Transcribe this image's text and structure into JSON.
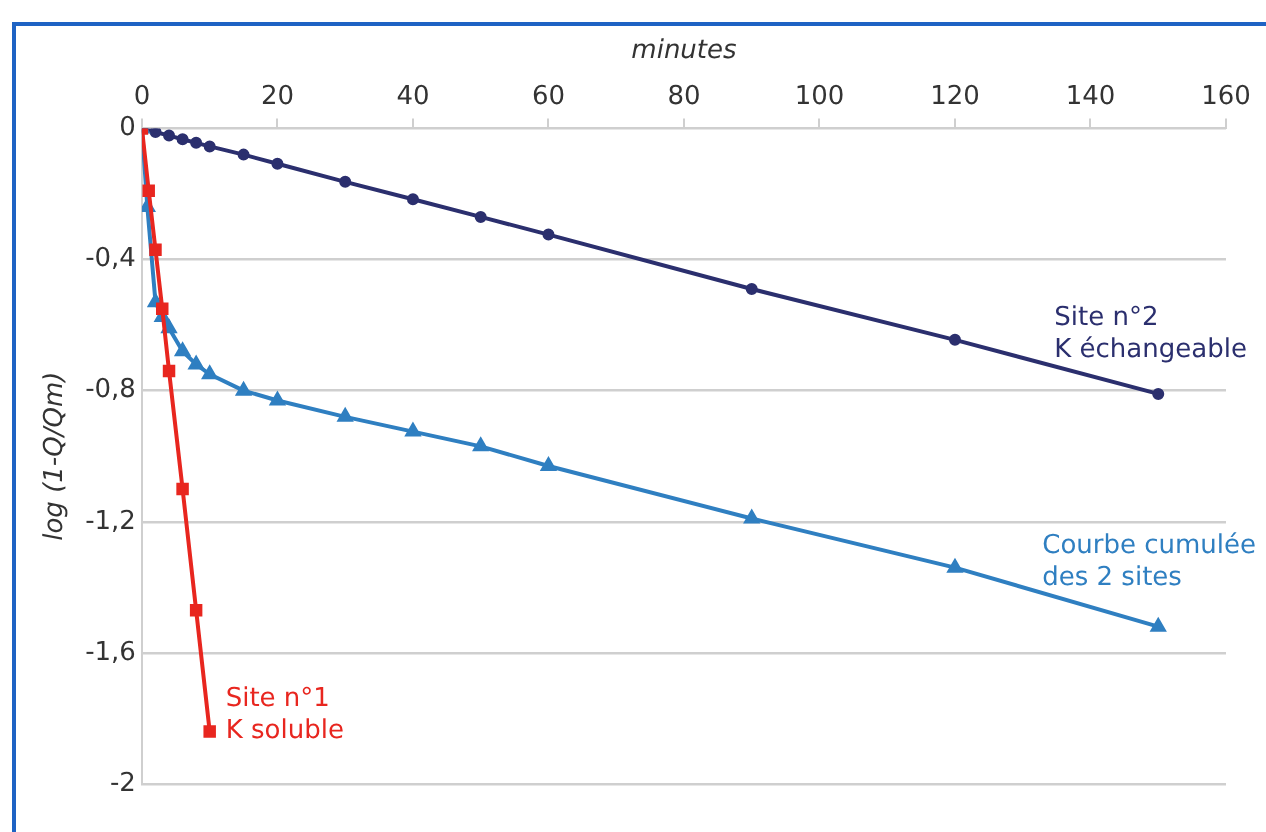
{
  "chart_data": {
    "type": "line",
    "xlabel": "minutes",
    "ylabel": "log (1-Q/Qm)",
    "xlim": [
      0,
      160
    ],
    "xticks": [
      0,
      20,
      40,
      60,
      80,
      100,
      120,
      140,
      160
    ],
    "ylim": [
      -2,
      0
    ],
    "yticks": [
      {
        "value": -2,
        "label": "-2"
      },
      {
        "value": -1.6,
        "label": "-1,6"
      },
      {
        "value": -1.2,
        "label": "-1,2"
      },
      {
        "value": -0.8,
        "label": "-0,8"
      },
      {
        "value": -0.4,
        "label": "-0,4"
      },
      {
        "value": 0,
        "label": "0"
      }
    ],
    "grid": "y",
    "legend": false,
    "series": [
      {
        "name": "Site n°2\nK échangeable",
        "color": "#2b2f6e",
        "marker": "circle",
        "x": [
          0,
          2,
          4,
          6,
          8,
          10,
          15,
          20,
          30,
          40,
          50,
          60,
          90,
          120,
          150
        ],
        "values": [
          0,
          -0.011,
          -0.022,
          -0.033,
          -0.044,
          -0.055,
          -0.08,
          -0.108,
          -0.163,
          -0.216,
          -0.27,
          -0.324,
          -0.49,
          -0.645,
          -0.81
        ]
      },
      {
        "name": "Courbe cumulée\ndes 2 sites",
        "color": "#2f7fc1",
        "marker": "triangle",
        "x": [
          0,
          0.8,
          2,
          3,
          4,
          6,
          8,
          10,
          15,
          20,
          30,
          40,
          50,
          60,
          90,
          120,
          150
        ],
        "values": [
          0,
          -0.24,
          -0.53,
          -0.575,
          -0.61,
          -0.68,
          -0.72,
          -0.75,
          -0.8,
          -0.83,
          -0.88,
          -0.925,
          -0.97,
          -1.03,
          -1.19,
          -1.34,
          -1.52
        ]
      },
      {
        "name": "Site n°1\nK soluble",
        "color": "#e8261f",
        "marker": "square",
        "x": [
          0,
          1,
          2,
          3,
          4,
          6,
          8,
          10
        ],
        "values": [
          0,
          -0.19,
          -0.37,
          -0.55,
          -0.74,
          -1.1,
          -1.47,
          -1.84
        ]
      }
    ]
  }
}
